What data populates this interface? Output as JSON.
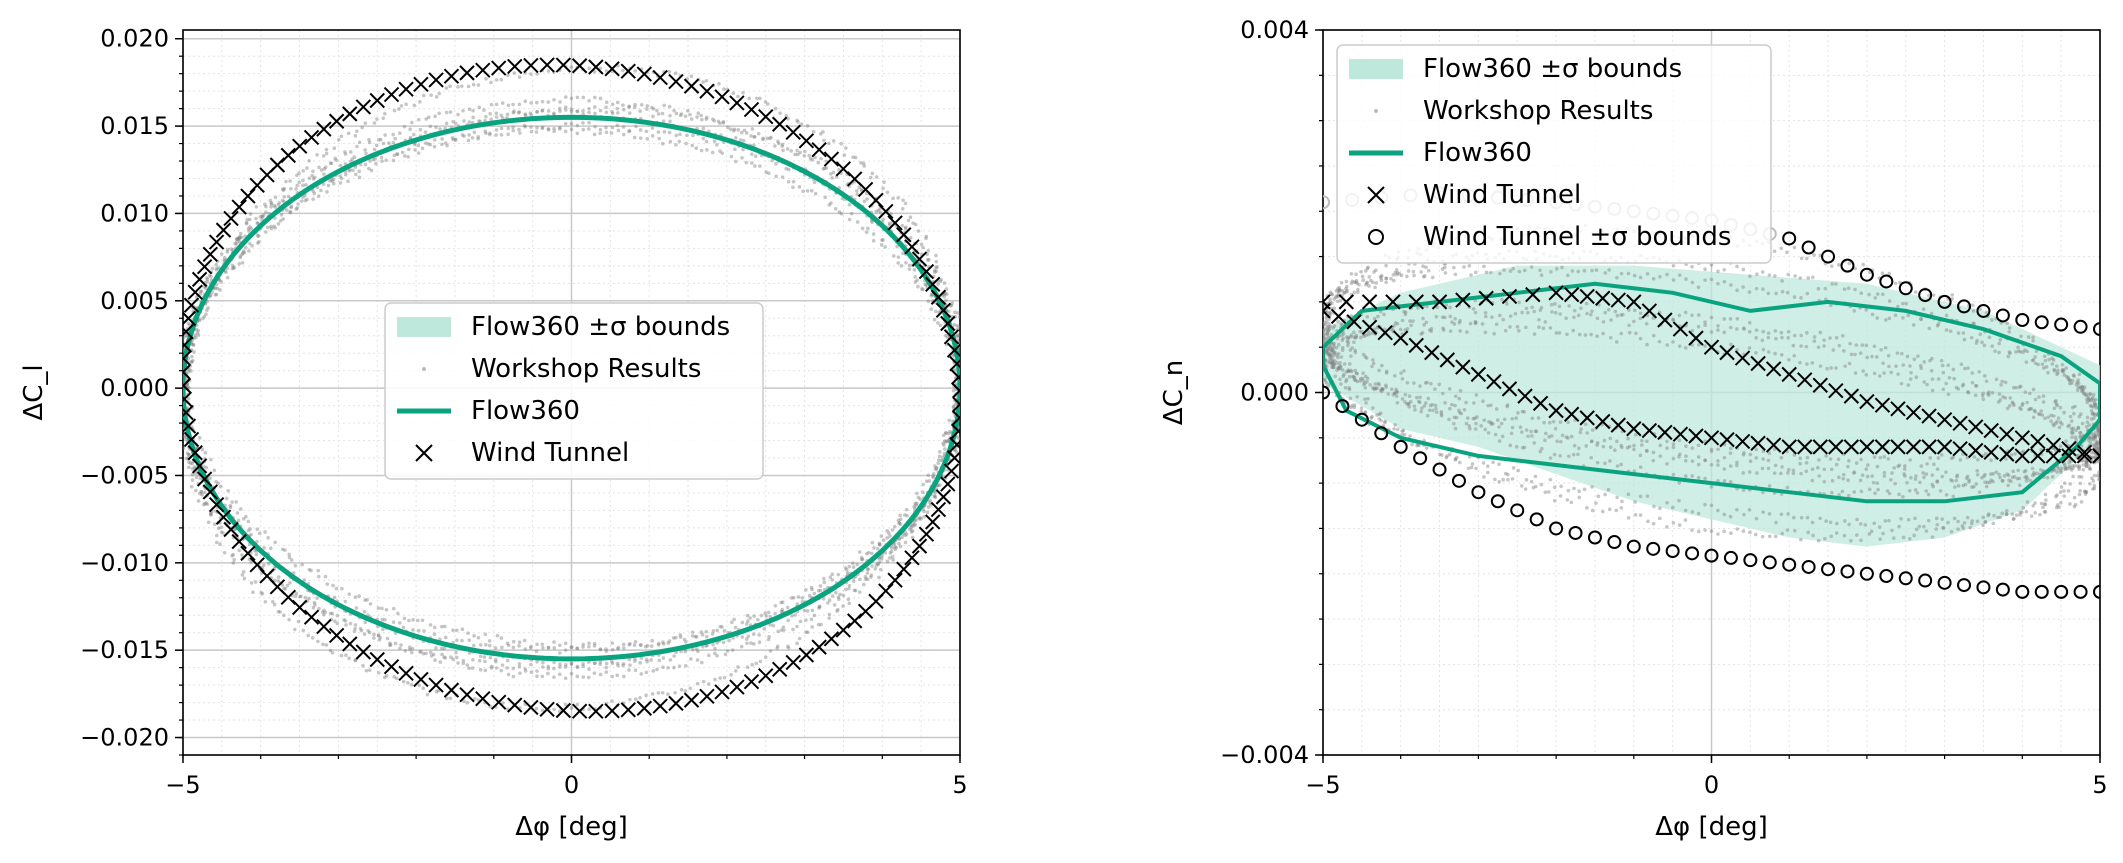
{
  "colors": {
    "flow360": "#0aa37f",
    "band": "#bfe8dc",
    "workshop": "#808080",
    "wind_tunnel": "#000000",
    "wt_bounds_light": "#bdbdbd",
    "grid_major": "#c8c8c8",
    "grid_minor": "#e4e4e4"
  },
  "chart_data": [
    {
      "type": "scatter",
      "id": "left",
      "xlabel": "Δφ [deg]",
      "ylabel": "ΔC_l",
      "xlim": [
        -5,
        5
      ],
      "ylim": [
        -0.021,
        0.0205
      ],
      "xticks": [
        -5,
        0,
        5
      ],
      "xtick_labels": [
        "−5",
        "0",
        "5"
      ],
      "yticks": [
        -0.02,
        -0.015,
        -0.01,
        -0.005,
        0,
        0.005,
        0.01,
        0.015,
        0.02
      ],
      "ytick_labels": [
        "−0.020",
        "−0.015",
        "−0.010",
        "−0.005",
        "0.000",
        "0.005",
        "0.010",
        "0.015",
        "0.020"
      ],
      "grid": true,
      "minor_grid": true,
      "legend_position": "center",
      "legend": [
        {
          "label": "Flow360 ±σ bounds",
          "marker": "band"
        },
        {
          "label": "Workshop Results",
          "marker": "dot"
        },
        {
          "label": "Flow360",
          "marker": "line"
        },
        {
          "label": "Wind Tunnel",
          "marker": "x"
        }
      ],
      "series": [
        {
          "name": "Flow360",
          "kind": "ellipse",
          "description": "Δφ = 5cos(t), ΔC_l = 0.0155 sin(t)",
          "amplitude_x": 5.0,
          "amplitude_y": 0.0155,
          "phase": 0.0
        },
        {
          "name": "Workshop Results",
          "kind": "ellipse-cloud",
          "members": [
            {
              "amplitude_y": 0.0183,
              "phase": 0.05
            },
            {
              "amplitude_y": 0.0158,
              "phase": -0.02
            },
            {
              "amplitude_y": 0.015,
              "phase": 0.03
            },
            {
              "amplitude_y": 0.016,
              "phase": 0.06
            },
            {
              "amplitude_y": 0.0148,
              "phase": -0.05
            },
            {
              "amplitude_y": 0.0165,
              "phase": 0.0
            }
          ]
        },
        {
          "name": "Wind Tunnel",
          "kind": "ellipse-markers",
          "amplitude_x": 5.0,
          "amplitude_y": 0.0185,
          "phase": -0.05,
          "count": 150
        }
      ]
    },
    {
      "type": "scatter",
      "id": "right",
      "xlabel": "Δφ [deg]",
      "ylabel": "ΔC_n",
      "xlim": [
        -5,
        5
      ],
      "ylim": [
        -0.004,
        0.004
      ],
      "xticks": [
        -5,
        0,
        5
      ],
      "xtick_labels": [
        "−5",
        "0",
        "5"
      ],
      "yticks": [
        -0.004,
        0,
        0.004
      ],
      "ytick_labels": [
        "−0.004",
        "0.000",
        "0.004"
      ],
      "grid": true,
      "minor_grid": true,
      "legend_position": "upper-left",
      "legend": [
        {
          "label": "Flow360 ±σ bounds",
          "marker": "band"
        },
        {
          "label": "Workshop Results",
          "marker": "dot"
        },
        {
          "label": "Flow360",
          "marker": "line"
        },
        {
          "label": "Wind Tunnel",
          "marker": "x"
        },
        {
          "label": "Wind Tunnel ±σ bounds",
          "marker": "circle"
        }
      ],
      "series": [
        {
          "name": "Flow360",
          "upper": [
            [
              -5,
              0.0005
            ],
            [
              -4.5,
              0.0009
            ],
            [
              -3.5,
              0.001
            ],
            [
              -2.5,
              0.0011
            ],
            [
              -1.5,
              0.0012
            ],
            [
              -0.5,
              0.0011
            ],
            [
              0.5,
              0.0009
            ],
            [
              1.5,
              0.001
            ],
            [
              2.5,
              0.0009
            ],
            [
              3.5,
              0.0007
            ],
            [
              4.5,
              0.0004
            ],
            [
              5,
              0.0001
            ]
          ],
          "lower": [
            [
              -5,
              0.0003
            ],
            [
              -4.7,
              -0.0002
            ],
            [
              -4,
              -0.0005
            ],
            [
              -3,
              -0.0007
            ],
            [
              -2,
              -0.0008
            ],
            [
              -1,
              -0.0009
            ],
            [
              0,
              -0.001
            ],
            [
              1,
              -0.0011
            ],
            [
              2,
              -0.0012
            ],
            [
              3,
              -0.0012
            ],
            [
              4,
              -0.0011
            ],
            [
              4.7,
              -0.0006
            ],
            [
              5,
              -0.0003
            ]
          ]
        },
        {
          "name": "Flow360 ±σ bounds",
          "upper": [
            [
              -5,
              0.0007
            ],
            [
              -4,
              0.0011
            ],
            [
              -2.5,
              0.0014
            ],
            [
              -1,
              0.0014
            ],
            [
              0.5,
              0.0013
            ],
            [
              2,
              0.0012
            ],
            [
              3.5,
              0.0009
            ],
            [
              5,
              0.0003
            ]
          ],
          "lower": [
            [
              -5,
              0.0001
            ],
            [
              -4,
              -0.0004
            ],
            [
              -3,
              -0.0006
            ],
            [
              -2,
              -0.0009
            ],
            [
              -1,
              -0.0012
            ],
            [
              0,
              -0.0014
            ],
            [
              1,
              -0.0016
            ],
            [
              2,
              -0.0017
            ],
            [
              3,
              -0.0016
            ],
            [
              4,
              -0.0013
            ],
            [
              5,
              -0.0005
            ]
          ]
        },
        {
          "name": "Wind Tunnel",
          "upper": [
            [
              -5,
              0.001
            ],
            [
              -3.5,
              0.001
            ],
            [
              -2,
              0.0011
            ],
            [
              -1,
              0.001
            ],
            [
              0,
              0.0005
            ],
            [
              1,
              0.0002
            ],
            [
              2,
              -0.0001
            ],
            [
              3,
              -0.0003
            ],
            [
              4,
              -0.0005
            ],
            [
              5,
              -0.0007
            ]
          ],
          "lower": [
            [
              -5,
              0.0009
            ],
            [
              -4,
              0.0006
            ],
            [
              -3,
              0.0002
            ],
            [
              -2,
              -0.0002
            ],
            [
              -1,
              -0.0004
            ],
            [
              0,
              -0.0005
            ],
            [
              1,
              -0.0006
            ],
            [
              2,
              -0.0006
            ],
            [
              3,
              -0.0006
            ],
            [
              4,
              -0.0007
            ],
            [
              5,
              -0.0007
            ]
          ]
        },
        {
          "name": "Wind Tunnel ±σ bounds",
          "upper": [
            [
              -5,
              0.0021
            ],
            [
              -3.5,
              0.0022
            ],
            [
              -2,
              0.0021
            ],
            [
              -1,
              0.002
            ],
            [
              0,
              0.0019
            ],
            [
              1,
              0.0017
            ],
            [
              2,
              0.0013
            ],
            [
              3,
              0.001
            ],
            [
              4,
              0.0008
            ],
            [
              5,
              0.0007
            ]
          ],
          "lower": [
            [
              -5,
              0.0
            ],
            [
              -4,
              -0.0006
            ],
            [
              -3,
              -0.0011
            ],
            [
              -2,
              -0.0015
            ],
            [
              -1,
              -0.0017
            ],
            [
              0,
              -0.0018
            ],
            [
              1,
              -0.0019
            ],
            [
              2,
              -0.002
            ],
            [
              3,
              -0.0021
            ],
            [
              4,
              -0.0022
            ],
            [
              5,
              -0.0022
            ]
          ],
          "upper_light": [
            [
              -4.5,
              0.0022
            ],
            [
              -2,
              0.0022
            ],
            [
              -0.5,
              0.002
            ],
            [
              0.3,
              0.0018
            ]
          ],
          "upper_dark_start": 1.0
        },
        {
          "name": "Workshop Results",
          "kind": "loop-cloud",
          "members": [
            {
              "offset": 0.0,
              "amp": 0.0008
            },
            {
              "offset": 0.0002,
              "amp": 0.0012
            },
            {
              "offset": -0.0003,
              "amp": 0.001
            },
            {
              "offset": 0.0001,
              "amp": 0.0016
            },
            {
              "offset": -0.0001,
              "amp": 0.0006
            },
            {
              "offset": 0.0003,
              "amp": 0.0009
            }
          ]
        }
      ]
    }
  ]
}
